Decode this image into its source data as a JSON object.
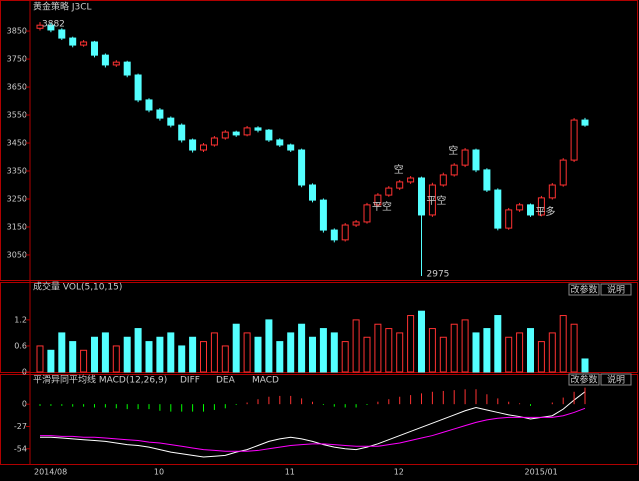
{
  "chart_data": [
    {
      "type": "candlestick",
      "title": "黄金策略 J3CL",
      "categories": [
        "2014/08",
        null,
        null,
        null,
        null,
        null,
        null,
        null,
        null,
        null,
        null,
        "10",
        null,
        null,
        null,
        null,
        null,
        null,
        null,
        null,
        null,
        null,
        null,
        "11",
        null,
        null,
        null,
        null,
        null,
        null,
        null,
        null,
        null,
        "12",
        null,
        null,
        null,
        null,
        null,
        null,
        null,
        null,
        null,
        null,
        null,
        "2015/01",
        null,
        null,
        null,
        null,
        null
      ],
      "open": [
        3860,
        3871,
        3854,
        3825,
        3800,
        3811,
        3764,
        3729,
        3739,
        3693,
        3604,
        3568,
        3539,
        3514,
        3461,
        3425,
        3443,
        3468,
        3489,
        3479,
        3504,
        3496,
        3461,
        3443,
        3425,
        3300,
        3246,
        3139,
        3104,
        3157,
        3168,
        3229,
        3264,
        3289,
        3311,
        3325,
        3193,
        3300,
        3336,
        3371,
        3425,
        3354,
        3282,
        3146,
        3211,
        3229,
        3193,
        3254,
        3300,
        3389,
        3532
      ],
      "high": [
        3882,
        3879,
        3860,
        3830,
        3818,
        3815,
        3770,
        3746,
        3744,
        3698,
        3610,
        3575,
        3545,
        3520,
        3466,
        3450,
        3475,
        3496,
        3494,
        3511,
        3510,
        3500,
        3467,
        3448,
        3430,
        3306,
        3252,
        3145,
        3164,
        3175,
        3236,
        3271,
        3296,
        3318,
        3332,
        3330,
        3308,
        3344,
        3378,
        3432,
        3430,
        3360,
        3288,
        3218,
        3236,
        3234,
        3261,
        3307,
        3396,
        3539,
        3540
      ],
      "low": [
        3852,
        3846,
        3818,
        3792,
        3794,
        3756,
        3720,
        3722,
        3685,
        3596,
        3560,
        3530,
        3506,
        3452,
        3416,
        3418,
        3437,
        3462,
        3472,
        3474,
        3488,
        3454,
        3436,
        3418,
        3292,
        3238,
        3130,
        3095,
        3098,
        3150,
        3162,
        3222,
        3258,
        3282,
        3304,
        2975,
        3186,
        3294,
        3330,
        3364,
        3346,
        3275,
        3138,
        3140,
        3204,
        3186,
        3188,
        3248,
        3294,
        3382,
        3508
      ],
      "close": [
        3871,
        3854,
        3825,
        3800,
        3811,
        3764,
        3729,
        3739,
        3693,
        3604,
        3568,
        3539,
        3514,
        3461,
        3425,
        3443,
        3468,
        3489,
        3479,
        3504,
        3496,
        3461,
        3443,
        3425,
        3300,
        3246,
        3139,
        3104,
        3157,
        3168,
        3229,
        3264,
        3289,
        3311,
        3325,
        3193,
        3300,
        3336,
        3371,
        3425,
        3354,
        3282,
        3146,
        3211,
        3229,
        3193,
        3254,
        3300,
        3389,
        3532,
        3514
      ],
      "up_color": "#ff3232",
      "down_color": "#54ffff",
      "ylim": [
        2957,
        3911
      ],
      "yticks": [
        3050,
        3150,
        3250,
        3350,
        3450,
        3550,
        3650,
        3750,
        3850
      ],
      "annotations": [
        "平空",
        "空",
        "平空",
        "空",
        "平多"
      ]
    },
    {
      "type": "bar",
      "title": "成交量 VOL(5,10,15)",
      "buttons": [
        "改参数",
        "说明"
      ],
      "values": [
        0.6,
        0.5,
        0.9,
        0.7,
        0.5,
        0.8,
        0.9,
        0.6,
        0.8,
        1.0,
        0.7,
        0.8,
        0.9,
        0.6,
        0.8,
        0.7,
        0.9,
        0.6,
        1.1,
        0.9,
        0.8,
        1.2,
        0.7,
        0.9,
        1.1,
        0.8,
        1.0,
        0.9,
        0.7,
        1.2,
        0.8,
        1.1,
        1.0,
        0.9,
        1.3,
        1.4,
        1.0,
        0.8,
        1.1,
        1.2,
        0.9,
        1.0,
        1.3,
        0.8,
        0.9,
        1.0,
        0.7,
        0.9,
        1.3,
        1.1,
        0.3
      ],
      "ylim": [
        0,
        1.75
      ],
      "yticks": [
        0,
        0.6,
        1.2
      ]
    },
    {
      "type": "macd",
      "title": "平滑异同平均线 MACD(12,26,9)",
      "buttons": [
        "改参数",
        "说明"
      ],
      "series": [
        {
          "name": "DIFF",
          "color": "#ffffff",
          "values": [
            -40,
            -40,
            -41,
            -42,
            -43,
            -44,
            -45,
            -47,
            -49,
            -50,
            -52,
            -55,
            -58,
            -60,
            -62,
            -64,
            -63,
            -62,
            -58,
            -55,
            -50,
            -45,
            -42,
            -40,
            -42,
            -45,
            -49,
            -52,
            -54,
            -55,
            -52,
            -48,
            -43,
            -38,
            -33,
            -28,
            -23,
            -18,
            -13,
            -8,
            -4,
            -7,
            -10,
            -13,
            -15,
            -18,
            -16,
            -14,
            -6,
            5,
            15
          ]
        },
        {
          "name": "DEA",
          "color": "#ff00ff",
          "values": [
            -38,
            -38,
            -39,
            -39,
            -40,
            -40,
            -41,
            -42,
            -43,
            -44,
            -46,
            -47,
            -49,
            -51,
            -53,
            -55,
            -56,
            -57,
            -57,
            -57,
            -56,
            -54,
            -52,
            -50,
            -49,
            -48,
            -48,
            -49,
            -50,
            -51,
            -51,
            -51,
            -49,
            -47,
            -44,
            -41,
            -38,
            -34,
            -30,
            -26,
            -22,
            -19,
            -17,
            -16,
            -16,
            -16,
            -16,
            -16,
            -14,
            -10,
            -5
          ]
        },
        {
          "name": "MACD",
          "color": "#00ff00",
          "up_color": "#ff3232",
          "down_color": "#00ff00",
          "values": [
            -2,
            -2,
            -2,
            -3,
            -3,
            -4,
            -4,
            -5,
            -6,
            -6,
            -6,
            -8,
            -9,
            -9,
            -9,
            -9,
            -7,
            -5,
            -1,
            2,
            6,
            9,
            10,
            10,
            7,
            3,
            -1,
            -3,
            -4,
            -4,
            -1,
            3,
            6,
            9,
            11,
            13,
            15,
            16,
            17,
            18,
            18,
            12,
            7,
            3,
            1,
            -2,
            0,
            2,
            8,
            15,
            20
          ]
        }
      ],
      "ylim": [
        -70,
        22
      ],
      "yticks": [
        0,
        -27,
        -54
      ]
    }
  ]
}
